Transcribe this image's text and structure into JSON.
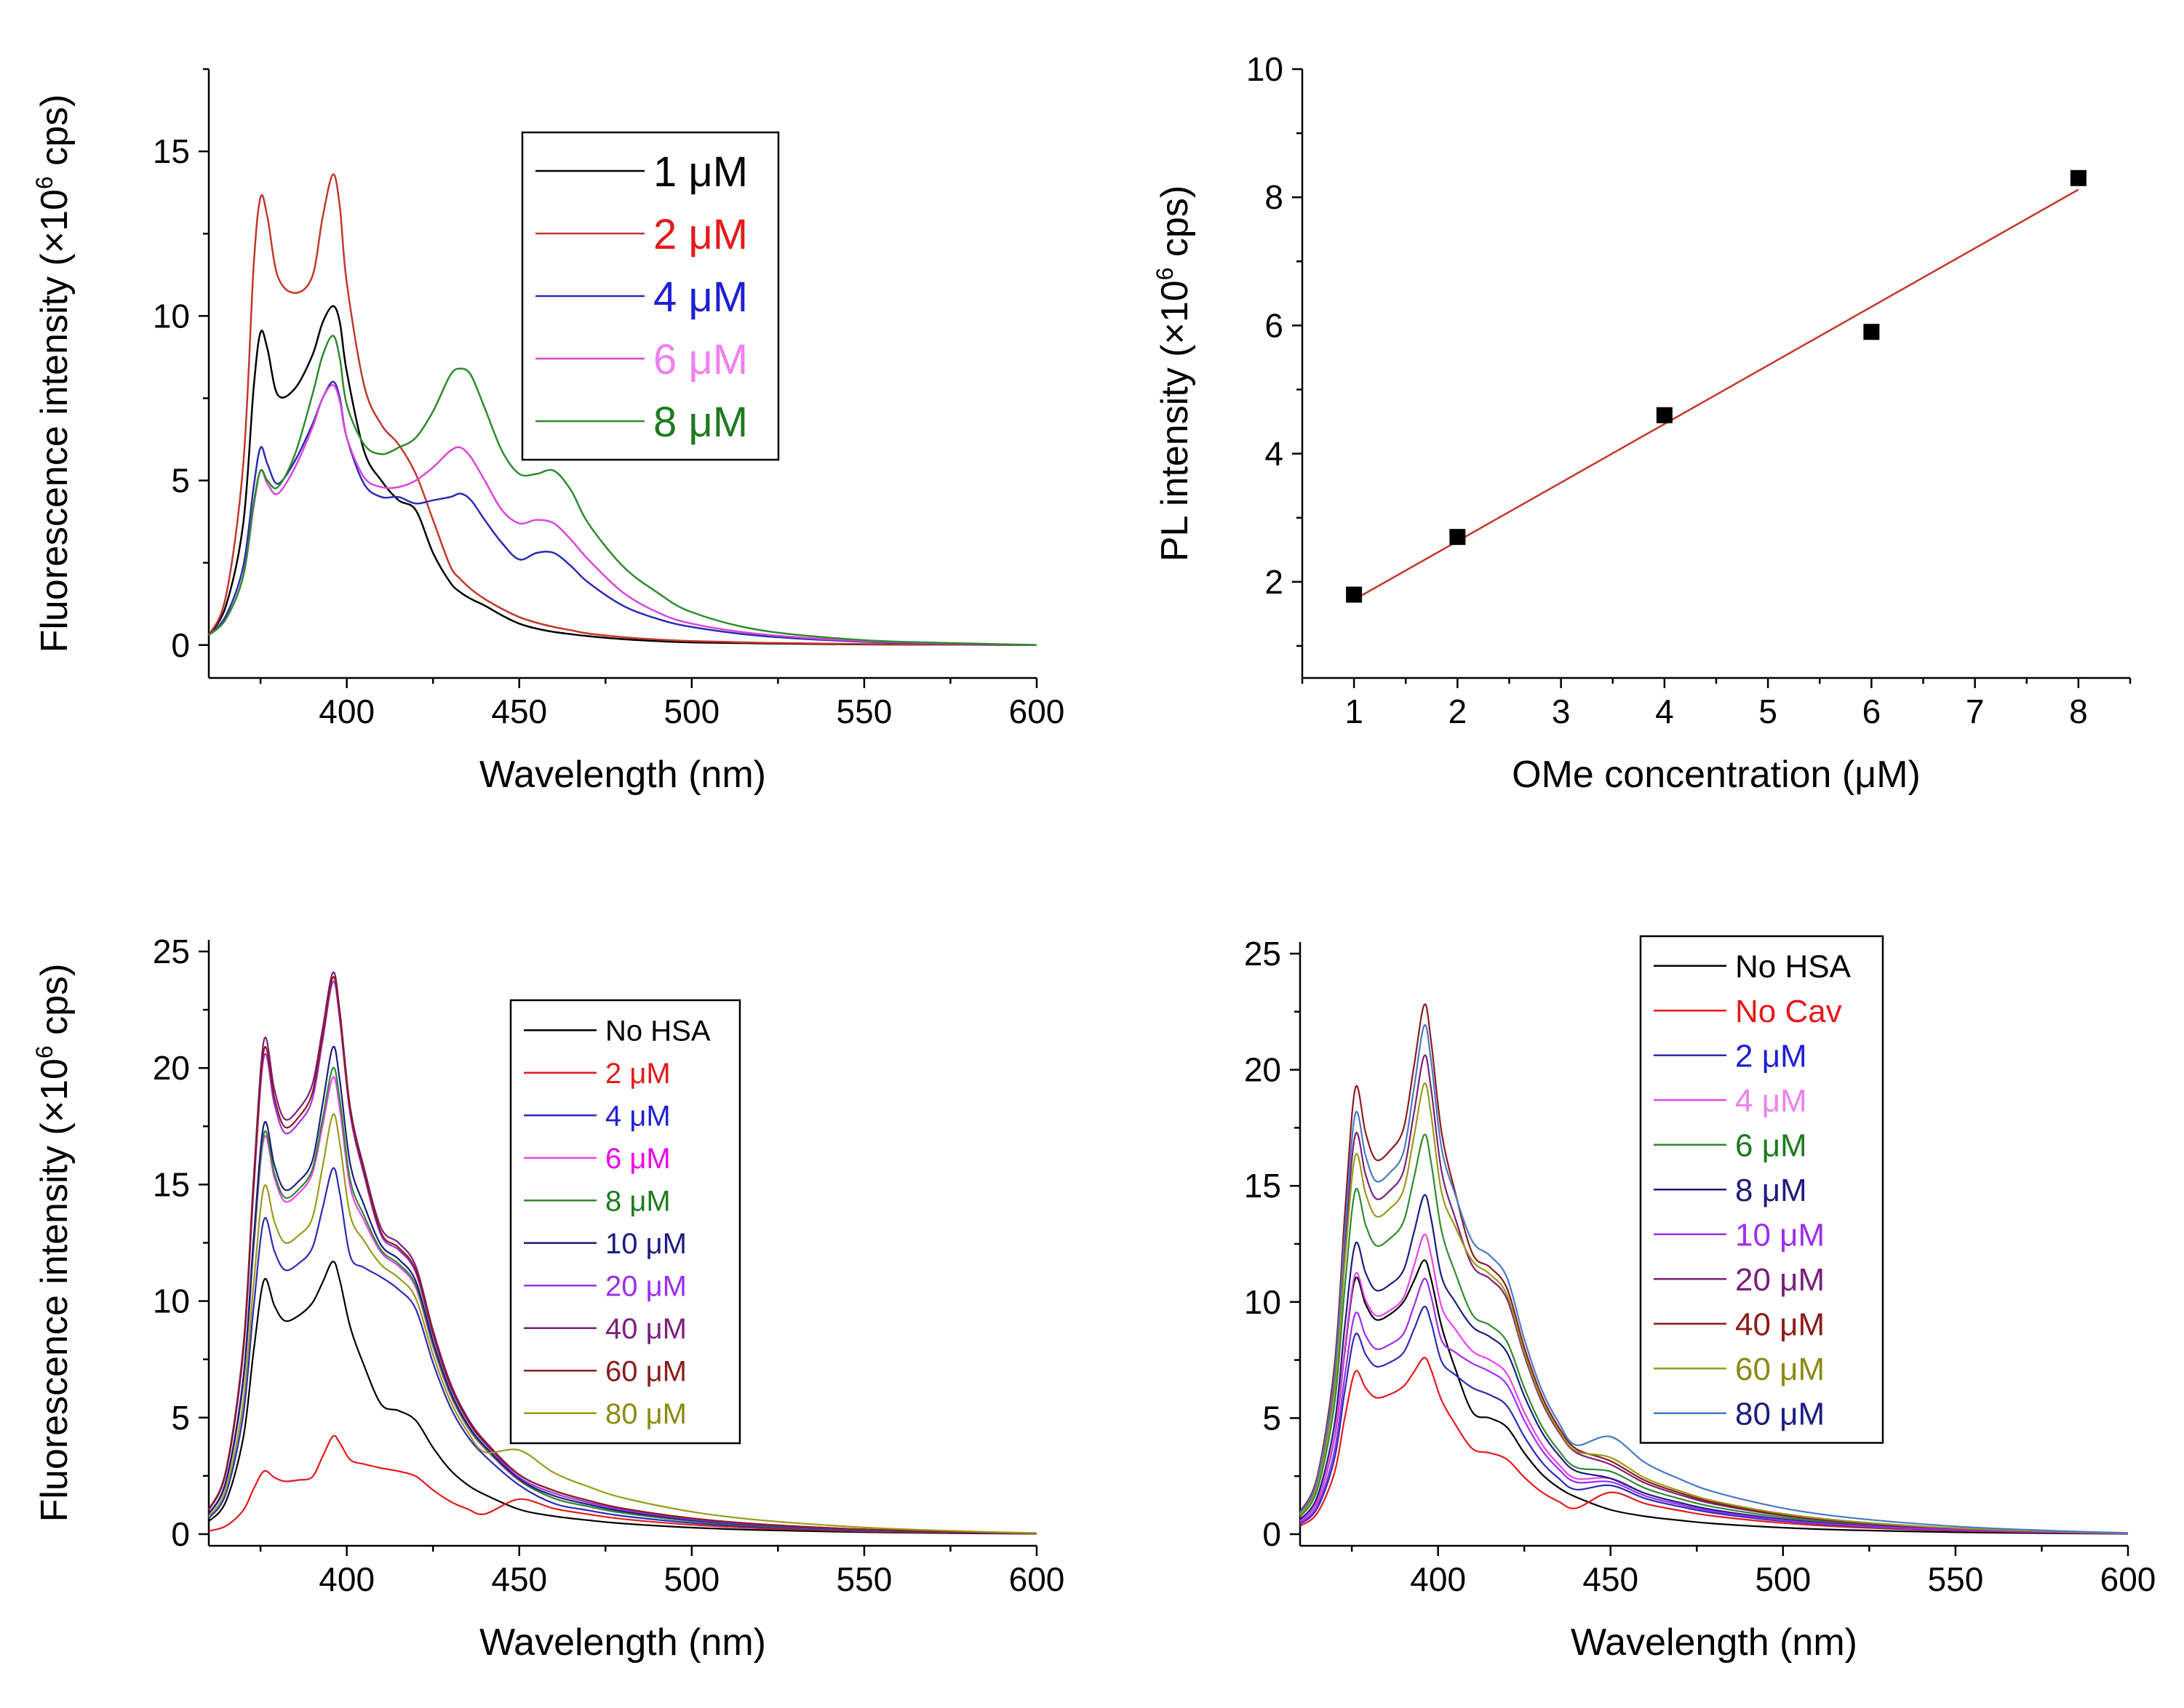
{
  "chart_data": [
    {
      "type": "line",
      "panel": "top-left",
      "xlabel": "Wavelength (nm)",
      "ylabel_main": "Fluorescence intensity (×10",
      "ylabel_sup": "6",
      "ylabel_tail": " cps)",
      "xlim": [
        360,
        600
      ],
      "ylim": [
        -1,
        17.5
      ],
      "xticks": [
        400,
        450,
        500,
        550,
        600
      ],
      "yticks": [
        0,
        5,
        10,
        15
      ],
      "legend_font": 58,
      "legend_position": "top-center",
      "x": [
        360,
        365,
        370,
        373,
        375,
        377,
        380,
        385,
        390,
        393,
        396,
        398,
        400,
        405,
        410,
        415,
        420,
        425,
        430,
        433,
        436,
        440,
        445,
        450,
        455,
        460,
        465,
        470,
        480,
        490,
        500,
        520,
        550,
        580,
        600
      ],
      "series": [
        {
          "name": "1 μM",
          "color": "#000000",
          "label_color": "#000000",
          "values": [
            0.3,
            1.2,
            3.7,
            7.8,
            9.5,
            9.0,
            7.6,
            7.8,
            8.8,
            9.8,
            10.3,
            9.8,
            8.3,
            5.9,
            5.0,
            4.4,
            4.1,
            2.8,
            1.9,
            1.6,
            1.4,
            1.2,
            0.9,
            0.65,
            0.5,
            0.4,
            0.33,
            0.27,
            0.18,
            0.12,
            0.08,
            0.05,
            0.02,
            0.01,
            0.0
          ]
        },
        {
          "name": "2 μM",
          "color": "#c0392b",
          "label_color": "#e41a1c",
          "values": [
            0.3,
            1.5,
            5.5,
            11.5,
            13.6,
            13.0,
            11.2,
            10.7,
            11.2,
            13.0,
            14.3,
            13.3,
            11.0,
            7.9,
            6.7,
            6.1,
            5.2,
            3.8,
            2.4,
            2.0,
            1.7,
            1.4,
            1.1,
            0.85,
            0.68,
            0.55,
            0.45,
            0.35,
            0.24,
            0.17,
            0.12,
            0.07,
            0.03,
            0.01,
            0.0
          ]
        },
        {
          "name": "4 μM",
          "color": "#2b2bb5",
          "label_color": "#1f1fd6",
          "values": [
            0.3,
            0.9,
            2.4,
            4.8,
            6.0,
            5.5,
            4.9,
            5.6,
            6.7,
            7.5,
            8.0,
            7.5,
            6.3,
            4.9,
            4.5,
            4.5,
            4.3,
            4.4,
            4.5,
            4.6,
            4.4,
            3.8,
            3.1,
            2.6,
            2.8,
            2.8,
            2.4,
            1.9,
            1.2,
            0.8,
            0.55,
            0.28,
            0.1,
            0.03,
            0.0
          ]
        },
        {
          "name": "6 μM",
          "color": "#d946d9",
          "label_color": "#ee82ee",
          "values": [
            0.3,
            0.8,
            2.1,
            4.2,
            5.3,
            4.9,
            4.6,
            5.4,
            6.6,
            7.5,
            7.9,
            7.4,
            6.3,
            5.1,
            4.8,
            4.8,
            5.0,
            5.4,
            5.9,
            6.0,
            5.7,
            5.0,
            4.1,
            3.7,
            3.8,
            3.7,
            3.2,
            2.6,
            1.6,
            1.0,
            0.65,
            0.33,
            0.12,
            0.04,
            0.0
          ]
        },
        {
          "name": "8 μM",
          "color": "#2e8b2e",
          "label_color": "#1e7b1e",
          "values": [
            0.3,
            0.8,
            2.1,
            4.3,
            5.3,
            5.0,
            4.8,
            5.8,
            7.6,
            8.8,
            9.4,
            8.7,
            7.3,
            6.1,
            5.8,
            6.0,
            6.3,
            7.1,
            8.2,
            8.4,
            8.2,
            7.2,
            5.9,
            5.2,
            5.2,
            5.3,
            4.7,
            3.7,
            2.4,
            1.6,
            1.0,
            0.45,
            0.15,
            0.05,
            0.0
          ]
        }
      ]
    },
    {
      "type": "scatter",
      "panel": "top-right",
      "xlabel": "OMe concentration (μM)",
      "ylabel_main": "PL intensity (×10",
      "ylabel_sup": "6",
      "ylabel_tail": " cps)",
      "xlim": [
        0.5,
        8.5
      ],
      "ylim": [
        0.5,
        10
      ],
      "xticks": [
        1,
        2,
        3,
        4,
        5,
        6,
        7,
        8
      ],
      "yticks": [
        2,
        4,
        6,
        8,
        10
      ],
      "points": [
        {
          "x": 1,
          "y": 1.8
        },
        {
          "x": 2,
          "y": 2.7
        },
        {
          "x": 4,
          "y": 4.6
        },
        {
          "x": 6,
          "y": 5.9
        },
        {
          "x": 8,
          "y": 8.3
        }
      ],
      "marker_color": "#000000",
      "fit_line": {
        "x": [
          1,
          8
        ],
        "y": [
          1.72,
          8.12
        ],
        "color": "#c0392b"
      }
    },
    {
      "type": "line",
      "panel": "bottom-left",
      "xlabel": "Wavelength (nm)",
      "ylabel_main": "Fluorescence intensity (×10",
      "ylabel_sup": "6",
      "ylabel_tail": " cps)",
      "xlim": [
        360,
        600
      ],
      "ylim": [
        -0.5,
        25.5
      ],
      "xticks": [
        400,
        450,
        500,
        550,
        600
      ],
      "yticks": [
        0,
        5,
        10,
        15,
        20,
        25
      ],
      "legend_font": 40,
      "legend_position": "center",
      "x": [
        360,
        365,
        370,
        373,
        376,
        379,
        382,
        386,
        390,
        393,
        396,
        398,
        401,
        405,
        410,
        415,
        420,
        425,
        430,
        435,
        440,
        450,
        460,
        470,
        480,
        500,
        520,
        550,
        580,
        600
      ],
      "series": [
        {
          "name": "No HSA",
          "color": "#000000",
          "label_color": "#000000",
          "peak1": 10.9,
          "peak2": 11.7,
          "shoulder": 5.3,
          "tail": 0.7
        },
        {
          "name": "2 μM",
          "color": "#e41a1c",
          "label_color": "#e41a1c",
          "peak1": 2.7,
          "peak2": 4.2,
          "shoulder": 2.7,
          "tail": 1.0
        },
        {
          "name": "4 μM",
          "color": "#2b2bb5",
          "label_color": "#1f1fd6",
          "peak1": 13.5,
          "peak2": 15.7,
          "shoulder": 10.5,
          "tail": 1.2
        },
        {
          "name": "6 μM",
          "color": "#ee42ee",
          "label_color": "#ee00ee",
          "peak1": 17.0,
          "peak2": 19.6,
          "shoulder": 11.5,
          "tail": 1.4
        },
        {
          "name": "8 μM",
          "color": "#2e8b2e",
          "label_color": "#1e7b1e",
          "peak1": 17.2,
          "peak2": 20.0,
          "shoulder": 11.6,
          "tail": 1.4
        },
        {
          "name": "10 μM",
          "color": "#1c1c80",
          "label_color": "#1c1c80",
          "peak1": 17.6,
          "peak2": 20.9,
          "shoulder": 11.8,
          "tail": 1.5
        },
        {
          "name": "20 μM",
          "color": "#9b2ff0",
          "label_color": "#9b2ff0",
          "peak1": 20.5,
          "peak2": 23.7,
          "shoulder": 12.2,
          "tail": 1.6
        },
        {
          "name": "40 μM",
          "color": "#7b1f7b",
          "label_color": "#7b1f7b",
          "peak1": 21.2,
          "peak2": 24.1,
          "shoulder": 12.5,
          "tail": 1.7
        },
        {
          "name": "60 μM",
          "color": "#8b1c1c",
          "label_color": "#8b1c1c",
          "peak1": 20.8,
          "peak2": 23.9,
          "shoulder": 12.3,
          "tail": 1.7
        },
        {
          "name": "80 μM",
          "color": "#9a9a1c",
          "label_color": "#8b8b12",
          "peak1": 14.9,
          "peak2": 18.0,
          "shoulder": 11.0,
          "tail": 2.4
        }
      ]
    },
    {
      "type": "line",
      "panel": "bottom-right",
      "xlabel": "Wavelength (nm)",
      "xlim": [
        360,
        600
      ],
      "ylim": [
        -0.5,
        25.5
      ],
      "xticks": [
        400,
        450,
        500,
        550,
        600
      ],
      "yticks": [
        0,
        5,
        10,
        15,
        20,
        25
      ],
      "legend_font": 44,
      "legend_position": "top-center",
      "series": [
        {
          "name": "No HSA",
          "color": "#000000",
          "label_color": "#000000",
          "peak1": 11.0,
          "peak2": 11.8,
          "shoulder": 5.0,
          "tail": 0.7
        },
        {
          "name": "No Cav",
          "color": "#e41a1c",
          "label_color": "#e41a1c",
          "peak1": 7.0,
          "peak2": 7.6,
          "shoulder": 3.5,
          "tail": 1.2
        },
        {
          "name": "2 μM",
          "color": "#2b2bb5",
          "label_color": "#1f1fd6",
          "peak1": 8.6,
          "peak2": 9.8,
          "shoulder": 6.0,
          "tail": 1.4
        },
        {
          "name": "4 μM",
          "color": "#ee42ee",
          "label_color": "#ee82ee",
          "peak1": 11.2,
          "peak2": 12.9,
          "shoulder": 7.5,
          "tail": 1.6
        },
        {
          "name": "6 μM",
          "color": "#2e8b2e",
          "label_color": "#1e7b1e",
          "peak1": 14.8,
          "peak2": 17.2,
          "shoulder": 9.0,
          "tail": 1.8
        },
        {
          "name": "8 μM",
          "color": "#1c1c80",
          "label_color": "#1c1c80",
          "peak1": 12.5,
          "peak2": 14.6,
          "shoulder": 8.5,
          "tail": 1.6
        },
        {
          "name": "10 μM",
          "color": "#9b2ff0",
          "label_color": "#9b2ff0",
          "peak1": 9.5,
          "peak2": 11.0,
          "shoulder": 7.0,
          "tail": 1.5
        },
        {
          "name": "20 μM",
          "color": "#7b1f7b",
          "label_color": "#7b1f7b",
          "peak1": 17.2,
          "peak2": 20.6,
          "shoulder": 11.0,
          "tail": 2.0
        },
        {
          "name": "40 μM",
          "color": "#8b1c1c",
          "label_color": "#8b1c1c",
          "peak1": 19.2,
          "peak2": 22.8,
          "shoulder": 11.5,
          "tail": 2.1
        },
        {
          "name": "60 μM",
          "color": "#9a9a1c",
          "label_color": "#8b8b12",
          "peak1": 16.3,
          "peak2": 19.4,
          "shoulder": 11.2,
          "tail": 2.2
        },
        {
          "name": "80 μM",
          "color": "#4a78c8",
          "label_color": "#1c1c80",
          "peak1": 18.1,
          "peak2": 21.9,
          "shoulder": 12.0,
          "tail": 2.8
        }
      ]
    }
  ]
}
